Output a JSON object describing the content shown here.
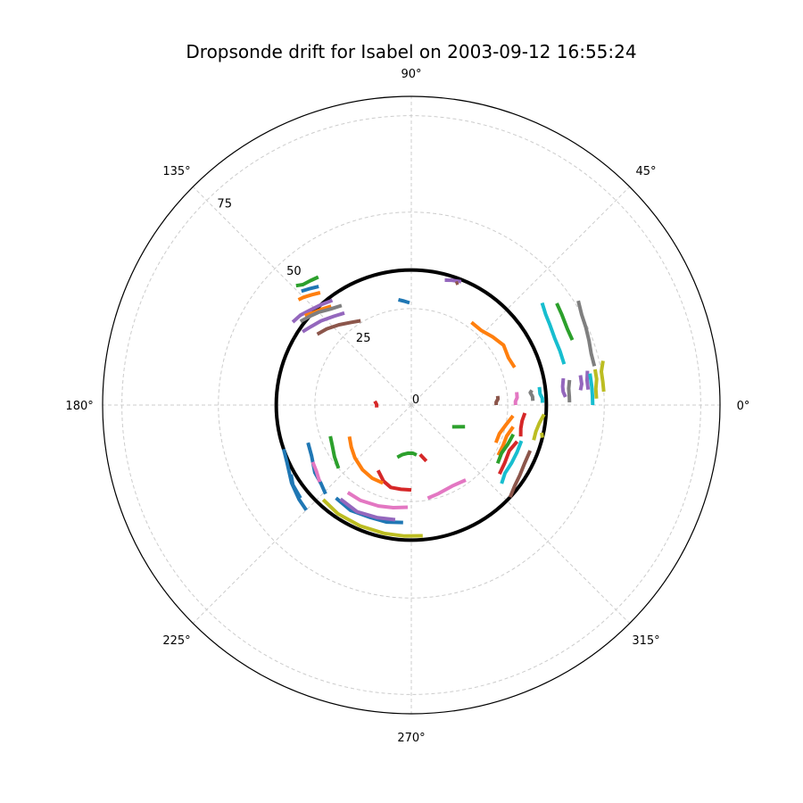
{
  "chart_data": {
    "type": "polar-line",
    "title": "Dropsonde drift for Isabel on 2003-09-12 16:55:24",
    "rlim": [
      0,
      80
    ],
    "r_ticks": [
      "0",
      "25",
      "50",
      "75"
    ],
    "r_tick_values": [
      0,
      25,
      50,
      75
    ],
    "theta_ticks": [
      "0°",
      "45°",
      "90°",
      "135°",
      "180°",
      "225°",
      "270°",
      "315°"
    ],
    "theta_tick_values": [
      0,
      45,
      90,
      135,
      180,
      225,
      270,
      315
    ],
    "grid": true,
    "eye_radius": 35,
    "colors": [
      "#1f77b4",
      "#ff7f0e",
      "#2ca02c",
      "#d62728",
      "#9467bd",
      "#8c564b",
      "#e377c2",
      "#7f7f7f",
      "#bcbd22",
      "#17becf"
    ],
    "tracks": [
      {
        "color": "#2ca02c",
        "points": [
          [
            126,
            41
          ],
          [
            129,
            41.5
          ],
          [
            132,
            42
          ],
          [
            134,
            43
          ]
        ]
      },
      {
        "color": "#1f77b4",
        "points": [
          [
            128,
            39
          ],
          [
            131,
            40
          ],
          [
            134,
            41
          ]
        ]
      },
      {
        "color": "#ff7f0e",
        "points": [
          [
            129,
            37.5
          ],
          [
            132,
            38.5
          ],
          [
            135,
            39.5
          ],
          [
            137,
            40
          ]
        ]
      },
      {
        "color": "#9467bd",
        "points": [
          [
            127,
            34
          ],
          [
            132,
            35
          ],
          [
            137,
            36
          ],
          [
            141,
            37
          ],
          [
            145,
            37.5
          ]
        ]
      },
      {
        "color": "#ff7f0e",
        "points": [
          [
            129,
            33
          ],
          [
            133,
            34
          ],
          [
            137,
            35
          ],
          [
            140,
            36
          ]
        ]
      },
      {
        "color": "#7f7f7f",
        "points": [
          [
            125,
            31.5
          ],
          [
            130,
            32.5
          ],
          [
            135,
            34
          ],
          [
            139,
            35
          ],
          [
            143,
            36
          ]
        ]
      },
      {
        "color": "#9467bd",
        "points": [
          [
            126,
            29.5
          ],
          [
            131,
            30.5
          ],
          [
            137,
            32
          ],
          [
            142,
            33
          ],
          [
            146,
            34
          ]
        ]
      },
      {
        "color": "#8c564b",
        "points": [
          [
            121,
            25.5
          ],
          [
            126,
            26.5
          ],
          [
            132,
            28
          ],
          [
            138,
            29.5
          ],
          [
            143,
            30.5
          ]
        ]
      },
      {
        "color": "#1f77b4",
        "points": [
          [
            91,
            26.5
          ],
          [
            94,
            27
          ],
          [
            97,
            27.5
          ]
        ]
      },
      {
        "color": "#9467bd",
        "points": [
          [
            68,
            34.5
          ],
          [
            72,
            34
          ],
          [
            75,
            33.5
          ]
        ]
      },
      {
        "color": "#8c564b",
        "points": [
          [
            69,
            34
          ],
          [
            70,
            33.5
          ]
        ]
      },
      {
        "color": "#ff7f0e",
        "points": [
          [
            54,
            26.5
          ],
          [
            47,
            26.5
          ],
          [
            40,
            27.5
          ],
          [
            33,
            28.5
          ],
          [
            26,
            28
          ],
          [
            20,
            28.5
          ]
        ]
      },
      {
        "color": "#17becf",
        "points": [
          [
            38,
            43
          ],
          [
            34,
            42
          ],
          [
            30,
            41.5
          ],
          [
            25,
            41
          ],
          [
            20,
            41
          ],
          [
            15,
            41
          ]
        ]
      },
      {
        "color": "#2ca02c",
        "points": [
          [
            35,
            46
          ],
          [
            31,
            45.5
          ],
          [
            26,
            45
          ],
          [
            22,
            45
          ]
        ]
      },
      {
        "color": "#7f7f7f",
        "points": [
          [
            32,
            51
          ],
          [
            28,
            50
          ],
          [
            24,
            49.5
          ],
          [
            20,
            49
          ],
          [
            16,
            48.5
          ],
          [
            12,
            48.5
          ]
        ]
      },
      {
        "color": "#9467bd",
        "points": [
          [
            11,
            46.5
          ],
          [
            8,
            46
          ],
          [
            5,
            46
          ]
        ]
      },
      {
        "color": "#9467bd",
        "points": [
          [
            10,
            44.5
          ],
          [
            7,
            44.5
          ],
          [
            5,
            44
          ]
        ]
      },
      {
        "color": "#9467bd",
        "points": [
          [
            10,
            40
          ],
          [
            7,
            39.5
          ],
          [
            5,
            39.5
          ],
          [
            3,
            40
          ]
        ]
      },
      {
        "color": "#bcbd22",
        "points": [
          [
            13,
            51
          ],
          [
            10,
            50
          ],
          [
            7,
            50
          ],
          [
            4,
            50
          ]
        ]
      },
      {
        "color": "#bcbd22",
        "points": [
          [
            11,
            48.5
          ],
          [
            8,
            48.5
          ],
          [
            5,
            48
          ],
          [
            2,
            48
          ]
        ]
      },
      {
        "color": "#17becf",
        "points": [
          [
            10,
            47
          ],
          [
            6,
            47
          ],
          [
            3,
            47
          ],
          [
            0,
            47
          ]
        ]
      },
      {
        "color": "#7f7f7f",
        "points": [
          [
            9,
            41.5
          ],
          [
            6,
            41
          ],
          [
            3,
            41
          ],
          [
            1,
            41
          ]
        ]
      },
      {
        "color": "#7f7f7f",
        "points": [
          [
            7,
            31.5
          ],
          [
            6,
            31
          ],
          [
            4,
            31.5
          ],
          [
            2,
            31.5
          ]
        ]
      },
      {
        "color": "#17becf",
        "points": [
          [
            8,
            33.5
          ],
          [
            5,
            33.5
          ],
          [
            3,
            34
          ],
          [
            1,
            34
          ]
        ]
      },
      {
        "color": "#e377c2",
        "points": [
          [
            7,
            27.5
          ],
          [
            4,
            27.5
          ],
          [
            2,
            27
          ],
          [
            0,
            27
          ]
        ]
      },
      {
        "color": "#8c564b",
        "points": [
          [
            6,
            22.5
          ],
          [
            4,
            22.5
          ],
          [
            2,
            22
          ],
          [
            0,
            22
          ]
        ]
      },
      {
        "color": "#bcbd22",
        "points": [
          [
            -4,
            34.5
          ],
          [
            -8,
            33.5
          ],
          [
            -12,
            33
          ],
          [
            -16,
            33
          ]
        ]
      },
      {
        "color": "#d62728",
        "points": [
          [
            -4,
            29.5
          ],
          [
            -8,
            29
          ],
          [
            -12,
            29
          ],
          [
            -16,
            29.5
          ]
        ]
      },
      {
        "color": "#ff7f0e",
        "points": [
          [
            -6,
            26.5
          ],
          [
            -12,
            25
          ],
          [
            -18,
            24
          ],
          [
            -24,
            24
          ]
        ]
      },
      {
        "color": "#2ca02c",
        "points": [
          [
            -22,
            15
          ],
          [
            -28,
            12
          ]
        ]
      },
      {
        "color": "#ff7f0e",
        "points": [
          [
            -12,
            27
          ],
          [
            -18,
            26
          ],
          [
            -24,
            26
          ],
          [
            -30,
            26
          ]
        ]
      },
      {
        "color": "#2ca02c",
        "points": [
          [
            -16,
            27.5
          ],
          [
            -22,
            27
          ],
          [
            -28,
            26.5
          ],
          [
            -34,
            27
          ]
        ]
      },
      {
        "color": "#17becf",
        "points": [
          [
            -18,
            30
          ],
          [
            -24,
            30
          ],
          [
            -30,
            30
          ],
          [
            -36,
            30
          ],
          [
            -41,
            31
          ]
        ]
      },
      {
        "color": "#8c564b",
        "points": [
          [
            -21,
            33
          ],
          [
            -27,
            33
          ],
          [
            -33,
            33.5
          ],
          [
            -38,
            34
          ],
          [
            -43,
            35
          ]
        ]
      },
      {
        "color": "#d62728",
        "points": [
          [
            -19,
            29
          ],
          [
            -25,
            28
          ],
          [
            -32,
            28.5
          ],
          [
            -38,
            29
          ]
        ]
      },
      {
        "color": "#bcbd22",
        "points": [
          [
            -14,
            35
          ],
          [
            -12,
            34.5
          ]
        ]
      },
      {
        "color": "#e377c2",
        "points": [
          [
            -54,
            24
          ],
          [
            -63,
            23.5
          ],
          [
            -73,
            24
          ],
          [
            -80,
            24.5
          ]
        ]
      },
      {
        "color": "#d62728",
        "points": [
          [
            -75,
            15
          ],
          [
            -80,
            13
          ]
        ]
      },
      {
        "color": "#2ca02c",
        "points": [
          [
            -105,
            14
          ],
          [
            -100,
            13
          ],
          [
            -94,
            12.5
          ],
          [
            -88,
            12.5
          ],
          [
            -84,
            13
          ]
        ]
      },
      {
        "color": "#d62728",
        "points": [
          [
            -117,
            19
          ],
          [
            -110,
            21
          ],
          [
            -104,
            22
          ],
          [
            -97,
            22
          ],
          [
            -90,
            22
          ]
        ]
      },
      {
        "color": "#1f77b4",
        "points": [
          [
            -129,
            31
          ],
          [
            -120,
            31.5
          ],
          [
            -110,
            31
          ],
          [
            -102,
            31
          ],
          [
            -94,
            30.5
          ]
        ]
      },
      {
        "color": "#e377c2",
        "points": [
          [
            -126,
            28
          ],
          [
            -118,
            28
          ],
          [
            -108,
            27.5
          ],
          [
            -100,
            27
          ],
          [
            -92,
            26.5
          ]
        ]
      },
      {
        "color": "#bcbd22",
        "points": [
          [
            -133,
            33.5
          ],
          [
            -124,
            34
          ],
          [
            -113,
            34
          ],
          [
            -102,
            34
          ],
          [
            -93,
            34
          ],
          [
            -85,
            34
          ]
        ]
      },
      {
        "color": "#9467bd",
        "points": [
          [
            -127,
            30.5
          ],
          [
            -117,
            31
          ],
          [
            -107,
            30.5
          ],
          [
            -98,
            30
          ]
        ]
      },
      {
        "color": "#ff7f0e",
        "points": [
          [
            -153,
            18
          ],
          [
            -145,
            19
          ],
          [
            -137,
            20
          ],
          [
            -127,
            21
          ],
          [
            -118,
            21.5
          ],
          [
            -110,
            21.5
          ]
        ]
      },
      {
        "color": "#2ca02c",
        "points": [
          [
            -159,
            22.5
          ],
          [
            -153,
            23
          ],
          [
            -146,
            24
          ],
          [
            -139,
            25
          ]
        ]
      },
      {
        "color": "#1f77b4",
        "points": [
          [
            -160,
            28.5
          ],
          [
            -153,
            29
          ],
          [
            -145,
            30.5
          ],
          [
            -139,
            31
          ],
          [
            -134,
            32
          ]
        ]
      },
      {
        "color": "#1f77b4",
        "points": [
          [
            -161,
            35
          ],
          [
            -155,
            35.5
          ],
          [
            -147,
            37
          ],
          [
            -140,
            38
          ],
          [
            -135,
            38.5
          ]
        ]
      },
      {
        "color": "#e377c2",
        "points": [
          [
            -150,
            29.5
          ],
          [
            -145,
            30
          ],
          [
            -140,
            31
          ]
        ]
      },
      {
        "color": "#1f77b4",
        "points": [
          [
            -150,
            36
          ],
          [
            -146,
            37
          ],
          [
            -140,
            37.5
          ]
        ]
      },
      {
        "color": "#d62728",
        "points": [
          [
            174,
            9.5
          ],
          [
            179,
            9
          ],
          [
            -176,
            9
          ]
        ]
      }
    ]
  }
}
